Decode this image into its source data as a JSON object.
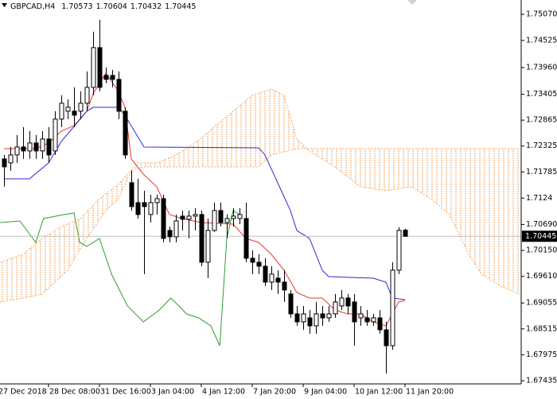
{
  "chart_data": {
    "type": "candlestick",
    "title": "GBPCAD,H4",
    "open": [
      1.72057,
      1.71975,
      1.7214,
      1.72306,
      1.72223,
      1.72389,
      1.72223,
      1.72471,
      1.72223,
      1.72886,
      1.73051,
      1.73051,
      1.73051,
      1.73217,
      1.73548,
      1.74376,
      1.73797,
      1.73797,
      1.73714,
      1.73051,
      1.71561,
      1.71146,
      1.71146,
      1.70898,
      1.71146,
      1.71229,
      1.70567,
      1.70434,
      1.70865,
      1.70799,
      1.70865,
      1.70898,
      1.69904,
      1.70567,
      1.70981,
      1.70732,
      1.70815,
      1.70815,
      1.70815,
      1.69987,
      1.69904,
      1.69821,
      1.6949,
      1.69573,
      1.6949,
      1.69242,
      1.68828,
      1.68662,
      1.68745,
      1.68579,
      1.68828,
      1.68745,
      1.68828,
      1.68993,
      1.69159,
      1.69076,
      1.68745,
      1.68745,
      1.68662,
      1.68745,
      1.68496,
      1.68165,
      1.69739,
      1.70573
    ],
    "high": [
      1.7214,
      1.72306,
      1.72554,
      1.7272,
      1.72637,
      1.72554,
      1.72637,
      1.7272,
      1.73051,
      1.73382,
      1.733,
      1.73548,
      1.73465,
      1.73879,
      1.74707,
      1.74956,
      1.73962,
      1.73912,
      1.73879,
      1.73134,
      1.71809,
      1.71643,
      1.71395,
      1.71312,
      1.71312,
      1.71312,
      1.7065,
      1.70898,
      1.70981,
      1.70981,
      1.7103,
      1.70981,
      1.70815,
      1.71146,
      1.71146,
      1.70898,
      1.7103,
      1.7103,
      1.71146,
      1.70153,
      1.7007,
      1.69987,
      1.69821,
      1.69739,
      1.69739,
      1.69325,
      1.68993,
      1.68993,
      1.6891,
      1.69076,
      1.68993,
      1.68993,
      1.69242,
      1.69325,
      1.69242,
      1.69242,
      1.68993,
      1.6891,
      1.68828,
      1.6891,
      1.68662,
      1.69904,
      1.70633,
      1.70604
    ],
    "low": [
      1.71478,
      1.71809,
      1.71975,
      1.72057,
      1.72057,
      1.72057,
      1.72057,
      1.71975,
      1.7214,
      1.7272,
      1.72886,
      1.7272,
      1.72886,
      1.73051,
      1.73382,
      1.73465,
      1.73631,
      1.73548,
      1.72886,
      1.72057,
      1.70981,
      1.70815,
      1.69656,
      1.70732,
      1.70898,
      1.70318,
      1.70318,
      1.70318,
      1.70567,
      1.70401,
      1.70567,
      1.69821,
      1.69573,
      1.70534,
      1.7065,
      1.70401,
      1.7065,
      1.70699,
      1.69904,
      1.69656,
      1.69656,
      1.69407,
      1.69325,
      1.69242,
      1.69076,
      1.68745,
      1.68579,
      1.68496,
      1.68414,
      1.68414,
      1.68579,
      1.68662,
      1.68745,
      1.6891,
      1.68828,
      1.68165,
      1.68579,
      1.68579,
      1.68579,
      1.68414,
      1.67585,
      1.68082,
      1.69656,
      1.70432
    ],
    "close": [
      1.71892,
      1.7214,
      1.72306,
      1.72223,
      1.72389,
      1.72223,
      1.72471,
      1.7214,
      1.72886,
      1.73217,
      1.73134,
      1.72968,
      1.73217,
      1.73548,
      1.74376,
      1.73548,
      1.73714,
      1.73714,
      1.73051,
      1.7214,
      1.71064,
      1.70898,
      1.71064,
      1.71146,
      1.71229,
      1.70401,
      1.70434,
      1.70765,
      1.70799,
      1.70865,
      1.70898,
      1.69904,
      1.70567,
      1.70981,
      1.70732,
      1.70815,
      1.70865,
      1.70898,
      1.69987,
      1.69904,
      1.69821,
      1.6949,
      1.69656,
      1.6949,
      1.69325,
      1.68828,
      1.68662,
      1.68828,
      1.68579,
      1.68828,
      1.68745,
      1.68828,
      1.69076,
      1.69159,
      1.68993,
      1.68662,
      1.68828,
      1.68662,
      1.68745,
      1.68496,
      1.68165,
      1.69739,
      1.70567,
      1.70445
    ],
    "up_color": "#ffffff",
    "down_color": "#000000",
    "price_line_color": "#c0c0c0",
    "xlim": [
      -0.625,
      81.25
    ],
    "ylim": [
      1.67369,
      1.75368
    ],
    "xticks": [
      {
        "value": -1,
        "label": "27 Dec 2018"
      },
      {
        "value": 7,
        "label": "28 Dec 08:00"
      },
      {
        "value": 15,
        "label": "31 Dec 16:00"
      },
      {
        "value": 23,
        "label": "3 Jan 04:00"
      },
      {
        "value": 31,
        "label": "4 Jan 12:00"
      },
      {
        "value": 39,
        "label": "7 Jan 20:00"
      },
      {
        "value": 47,
        "label": "9 Jan 04:00"
      },
      {
        "value": 55,
        "label": "10 Jan 12:00"
      },
      {
        "value": 63,
        "label": "11 Jan 20:00"
      }
    ],
    "yticks": [
      {
        "value": 1.7507,
        "label": "1.75070"
      },
      1.74525,
      {
        "value": 1.7396,
        "label": "1.73960"
      },
      1.73405,
      1.72865,
      1.72325,
      1.71785,
      1.7124,
      {
        "value": 1.7069,
        "label": "1.70690"
      },
      {
        "value": 1.7015,
        "label": "1.70150"
      },
      {
        "value": 1.6961,
        "label": "1.69610"
      },
      1.69055,
      1.68515,
      1.67975,
      1.67435
    ],
    "lines": [
      {
        "color": "#e8392f",
        "x": [
          0,
          5,
          7,
          9,
          11,
          13,
          14,
          16,
          18,
          19,
          20,
          22,
          24,
          26,
          28,
          31,
          36,
          38,
          40,
          42,
          44,
          46,
          48,
          50,
          52,
          54,
          56,
          58,
          60,
          62,
          63
        ],
        "values": [
          1.72271,
          1.72271,
          1.72387,
          1.72635,
          1.72751,
          1.73049,
          1.73414,
          1.73844,
          1.73463,
          1.73132,
          1.72056,
          1.71725,
          1.71476,
          1.70897,
          1.70814,
          1.70731,
          1.70698,
          1.704,
          1.70317,
          1.70068,
          1.69737,
          1.69274,
          1.69158,
          1.69158,
          1.68909,
          1.68826,
          1.68826,
          1.68661,
          1.68578,
          1.69075,
          1.69108
        ]
      },
      {
        "color": "#2a2ad8",
        "x": [
          0,
          4,
          7,
          9,
          13,
          14,
          18,
          19,
          22,
          40,
          41,
          43,
          45,
          46,
          48,
          50,
          51,
          58,
          60,
          61,
          63
        ],
        "values": [
          1.71642,
          1.71642,
          1.71973,
          1.7242,
          1.73049,
          1.73132,
          1.73132,
          1.72967,
          1.72304,
          1.72288,
          1.72139,
          1.71559,
          1.70979,
          1.70565,
          1.704,
          1.69737,
          1.69605,
          1.69572,
          1.69489,
          1.69158,
          1.69125
        ]
      },
      {
        "color": "#2e9e2e",
        "x": [
          -0.6,
          2.5,
          5,
          6.2,
          9.4,
          11,
          11.9,
          13,
          15,
          16.9,
          19.4,
          21.9,
          24.4,
          26.2,
          27.5,
          28.7,
          30.6,
          32.5,
          33.9,
          35,
          36,
          37
        ],
        "values": [
          1.70731,
          1.70764,
          1.70317,
          1.70814,
          1.70897,
          1.7093,
          1.70317,
          1.70234,
          1.704,
          1.69654,
          1.68992,
          1.68661,
          1.68909,
          1.69158,
          1.68992,
          1.68826,
          1.68744,
          1.68578,
          1.68164,
          1.704,
          1.70979,
          1.70897
        ]
      }
    ],
    "cloud": {
      "color": "#f4a460",
      "span_a": {
        "x": [
          -0.6,
          3,
          6,
          9,
          12,
          15,
          18,
          21,
          24,
          27,
          30,
          33,
          36,
          39,
          42,
          44,
          46,
          48,
          52,
          56,
          60,
          64,
          67,
          70,
          73,
          75,
          78,
          81
        ],
        "values": [
          1.69903,
          1.70068,
          1.704,
          1.70648,
          1.70814,
          1.71228,
          1.71526,
          1.71973,
          1.71973,
          1.72139,
          1.72387,
          1.72718,
          1.73049,
          1.73381,
          1.73513,
          1.73381,
          1.7247,
          1.72221,
          1.7189,
          1.71476,
          1.71393,
          1.71476,
          1.71228,
          1.70897,
          1.70068,
          1.69654,
          1.69406,
          1.6924
        ]
      },
      "span_b": {
        "x": [
          -0.6,
          3,
          6,
          10,
          13,
          16,
          18,
          20,
          22,
          40,
          42,
          46,
          81
        ],
        "values": [
          1.69075,
          1.69158,
          1.6924,
          1.69737,
          1.704,
          1.70979,
          1.71228,
          1.71807,
          1.7189,
          1.7189,
          1.72139,
          1.72271,
          1.72271
        ]
      }
    }
  }
}
